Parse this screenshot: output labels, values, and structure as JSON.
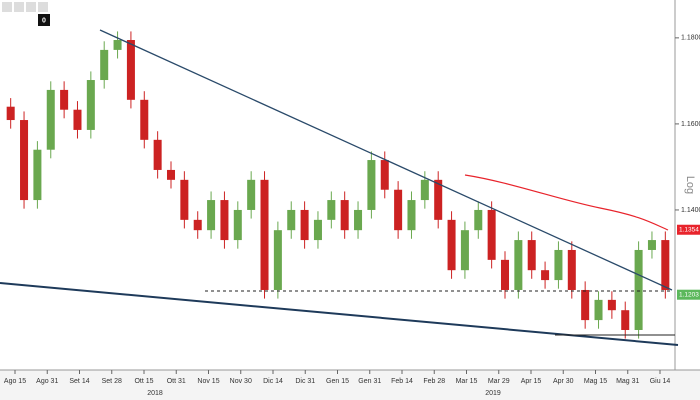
{
  "chart_data": {
    "type": "candlestick",
    "toolbar_label": "0",
    "scale_label": "Log",
    "ylim": [
      1.1028,
      1.1888
    ],
    "yticks": [
      {
        "value": 1.18,
        "label": "1.1800"
      },
      {
        "value": 1.16,
        "label": "1.1600"
      },
      {
        "value": 1.14,
        "label": "1.1400"
      }
    ],
    "x_labels": [
      "Ago 15",
      "Ago 31",
      "Set 14",
      "Set 28",
      "Ott 15",
      "Ott 31",
      "Nov 15",
      "Nov 30",
      "Dic 14",
      "Dic 31",
      "Gen 15",
      "Gen 31",
      "Feb 14",
      "Feb 28",
      "Mar 15",
      "Mar 29",
      "Apr 15",
      "Apr 30",
      "Mag 15",
      "Mag 31",
      "Giu 14"
    ],
    "years": [
      "2018",
      "2019"
    ],
    "up_color": "#6aa84f",
    "down_color": "#cc2222",
    "open": [
      1.164,
      1.1609,
      1.1423,
      1.154,
      1.1679,
      1.1633,
      1.1586,
      1.1702,
      1.1772,
      1.1795,
      1.1656,
      1.1563,
      1.1493,
      1.147,
      1.1377,
      1.1353,
      1.1423,
      1.133,
      1.14,
      1.147,
      1.1214,
      1.1353,
      1.14,
      1.133,
      1.1377,
      1.1423,
      1.1353,
      1.14,
      1.1516,
      1.1447,
      1.1353,
      1.1423,
      1.147,
      1.1377,
      1.126,
      1.1353,
      1.14,
      1.1284,
      1.1214,
      1.133,
      1.126,
      1.1237,
      1.1307,
      1.1214,
      1.1144,
      1.1191,
      1.1167,
      1.1121,
      1.1307,
      1.133
    ],
    "high": [
      1.166,
      1.1629,
      1.156,
      1.1699,
      1.1699,
      1.1653,
      1.1722,
      1.1792,
      1.1815,
      1.1815,
      1.1676,
      1.1583,
      1.1513,
      1.149,
      1.1397,
      1.1443,
      1.1443,
      1.142,
      1.149,
      1.149,
      1.1373,
      1.142,
      1.142,
      1.1397,
      1.1443,
      1.1443,
      1.142,
      1.1536,
      1.1536,
      1.1467,
      1.1443,
      1.149,
      1.149,
      1.1397,
      1.1373,
      1.142,
      1.142,
      1.1304,
      1.135,
      1.135,
      1.128,
      1.1327,
      1.1327,
      1.1234,
      1.1211,
      1.1211,
      1.1187,
      1.1327,
      1.135,
      1.135
    ],
    "low": [
      1.1589,
      1.1403,
      1.1403,
      1.152,
      1.1613,
      1.1566,
      1.1566,
      1.1682,
      1.1752,
      1.1636,
      1.1543,
      1.1473,
      1.145,
      1.1357,
      1.1333,
      1.1333,
      1.131,
      1.131,
      1.138,
      1.1194,
      1.1194,
      1.1333,
      1.131,
      1.131,
      1.1357,
      1.1333,
      1.1333,
      1.138,
      1.1427,
      1.1333,
      1.1333,
      1.1403,
      1.1357,
      1.124,
      1.124,
      1.1333,
      1.1264,
      1.1194,
      1.1194,
      1.124,
      1.1217,
      1.1217,
      1.1194,
      1.1124,
      1.1124,
      1.1147,
      1.1101,
      1.1101,
      1.1287,
      1.1194
    ],
    "close": [
      1.1609,
      1.1423,
      1.154,
      1.1679,
      1.1633,
      1.1586,
      1.1702,
      1.1772,
      1.1795,
      1.1656,
      1.1563,
      1.1493,
      1.147,
      1.1377,
      1.1353,
      1.1423,
      1.133,
      1.14,
      1.147,
      1.1214,
      1.1353,
      1.14,
      1.133,
      1.1377,
      1.1423,
      1.1353,
      1.14,
      1.1516,
      1.1447,
      1.1353,
      1.1423,
      1.147,
      1.1377,
      1.126,
      1.1353,
      1.14,
      1.1284,
      1.1214,
      1.133,
      1.126,
      1.1237,
      1.1307,
      1.1214,
      1.1144,
      1.1191,
      1.1167,
      1.1121,
      1.1307,
      1.133,
      1.1214
    ],
    "price_markers": [
      {
        "value": 1.1354,
        "label": "1.1354",
        "color": "#e8242c"
      },
      {
        "value": 1.1203,
        "label": "1.1203",
        "color": "#5cb85c"
      }
    ]
  }
}
